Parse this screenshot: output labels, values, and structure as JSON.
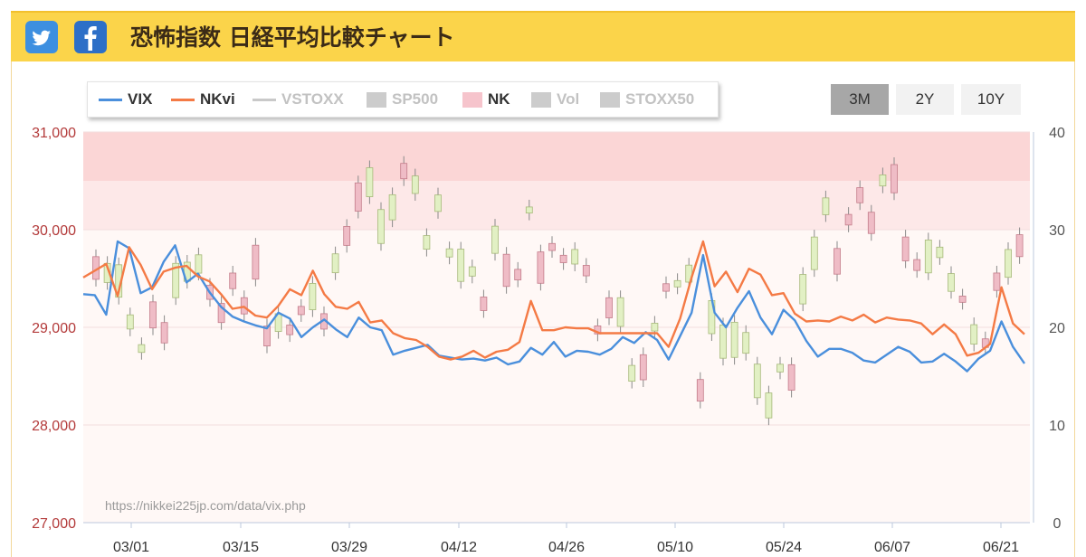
{
  "header": {
    "title": "恐怖指数 日経平均比較チャート",
    "twitter_icon": "twitter-icon",
    "facebook_icon": "facebook-icon"
  },
  "legend": [
    {
      "label": "VIX",
      "color": "#4a8fdc",
      "kind": "line",
      "active": true
    },
    {
      "label": "NKvi",
      "color": "#f47a45",
      "kind": "line",
      "active": true
    },
    {
      "label": "VSTOXX",
      "color": "#c9c9c9",
      "kind": "line",
      "active": false
    },
    {
      "label": "SP500",
      "color": "#cccccc",
      "kind": "box",
      "active": false
    },
    {
      "label": "NK",
      "color": "#f6c4cc",
      "kind": "box",
      "active": true
    },
    {
      "label": "Vol",
      "color": "#cccccc",
      "kind": "box",
      "active": false
    },
    {
      "label": "STOXX50",
      "color": "#cccccc",
      "kind": "box",
      "active": false
    }
  ],
  "range_buttons": [
    {
      "label": "3M",
      "active": true
    },
    {
      "label": "2Y",
      "active": false
    },
    {
      "label": "10Y",
      "active": false
    }
  ],
  "watermark": "https://nikkei225jp.com/data/vix.php",
  "chart_data": {
    "type": "line",
    "y_left": {
      "ticks": [
        27000,
        28000,
        29000,
        30000,
        31000
      ],
      "tick_labels": [
        "27,000",
        "28,000",
        "29,000",
        "30,000",
        "31,000"
      ],
      "range": [
        27000,
        31000
      ],
      "color": "#b33a3a"
    },
    "y_right": {
      "ticks": [
        0,
        10,
        20,
        30,
        40
      ],
      "range": [
        0,
        40
      ],
      "color": "#555555"
    },
    "x_tick_labels": [
      "03/01",
      "03/15",
      "03/29",
      "04/12",
      "04/26",
      "05/10",
      "05/24",
      "06/07",
      "06/21"
    ],
    "bands": [
      {
        "from": 35,
        "to": 40,
        "color": "#fbd6d6"
      },
      {
        "from": 30,
        "to": 35,
        "color": "#fde8e8"
      },
      {
        "from": 0,
        "to": 30,
        "color": "#fff8f6"
      }
    ],
    "series": [
      {
        "name": "VIX",
        "axis": "right",
        "color": "#4a8fdc",
        "values": [
          23.4,
          23.3,
          21.3,
          28.8,
          28.1,
          23.5,
          24.1,
          26.7,
          28.4,
          24.6,
          25.5,
          23.6,
          22.1,
          21.1,
          20.6,
          20.2,
          19.9,
          21.5,
          20.9,
          19.0,
          20.0,
          20.8,
          19.8,
          19.0,
          21.0,
          20.0,
          19.7,
          17.2,
          17.6,
          17.9,
          18.2,
          17.1,
          16.9,
          16.7,
          16.8,
          16.6,
          16.9,
          16.2,
          16.5,
          17.9,
          17.2,
          18.5,
          17.0,
          17.6,
          17.5,
          17.2,
          17.8,
          19.0,
          18.4,
          19.5,
          18.7,
          16.7,
          19.1,
          21.5,
          27.4,
          21.5,
          20.0,
          22.0,
          23.7,
          21.0,
          19.3,
          21.8,
          20.7,
          18.6,
          17.0,
          17.8,
          17.8,
          17.4,
          16.6,
          16.4,
          17.2,
          18.0,
          17.5,
          16.4,
          16.5,
          17.3,
          16.5,
          15.5,
          16.8,
          17.6,
          20.6,
          18.0,
          16.3
        ]
      },
      {
        "name": "NKvi",
        "axis": "right",
        "color": "#f47a45",
        "values": [
          25.1,
          25.8,
          26.5,
          23.2,
          28.2,
          26.4,
          23.9,
          25.7,
          26.1,
          26.3,
          25.2,
          24.7,
          23.4,
          21.9,
          22.1,
          21.2,
          21.0,
          22.2,
          23.9,
          23.3,
          25.8,
          23.4,
          22.1,
          21.9,
          22.6,
          20.5,
          20.7,
          19.4,
          18.9,
          18.7,
          18.0,
          17.0,
          16.7,
          17.0,
          17.6,
          16.9,
          17.5,
          17.7,
          18.5,
          22.7,
          19.7,
          19.7,
          20.0,
          19.9,
          19.9,
          19.4,
          19.4,
          19.4,
          19.4,
          19.4,
          19.4,
          18.0,
          20.9,
          25.1,
          28.8,
          24.2,
          25.7,
          23.6,
          26.0,
          25.4,
          23.3,
          23.5,
          21.4,
          20.6,
          20.7,
          20.6,
          21.1,
          20.7,
          21.3,
          20.5,
          21.0,
          20.8,
          20.7,
          20.4,
          19.3,
          20.3,
          19.3,
          17.1,
          17.4,
          18.3,
          24.1,
          20.4,
          19.3
        ]
      }
    ]
  }
}
